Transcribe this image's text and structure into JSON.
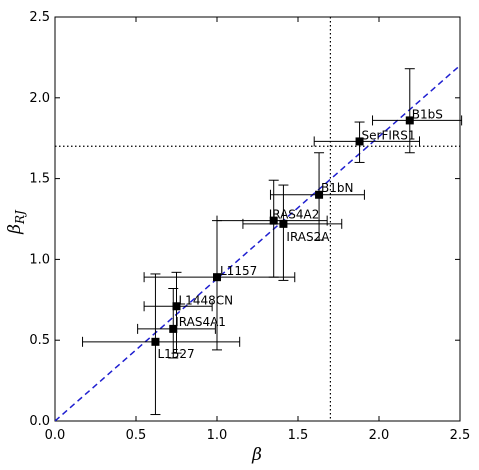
{
  "chart_data": {
    "type": "scatter",
    "title": "",
    "xlabel": "β",
    "ylabel": "β",
    "ylabel_subscript": "RJ",
    "xlim": [
      0.0,
      2.5
    ],
    "ylim": [
      0.0,
      2.5
    ],
    "xticks": [
      "0.0",
      "0.5",
      "1.0",
      "1.5",
      "2.0",
      "2.5"
    ],
    "yticks": [
      "0.0",
      "0.5",
      "1.0",
      "1.5",
      "2.0",
      "2.5"
    ],
    "grid": false,
    "points": [
      {
        "label": "L1527",
        "x": 0.62,
        "y": 0.49,
        "xerr": [
          0.45,
          0.52
        ],
        "yerr": [
          0.45,
          0.42
        ]
      },
      {
        "label": "IRAS4A1",
        "x": 0.73,
        "y": 0.57,
        "xerr": [
          0.22,
          0.26
        ],
        "yerr": [
          0.18,
          0.25
        ]
      },
      {
        "label": "L1448CN",
        "x": 0.75,
        "y": 0.71,
        "xerr": [
          0.2,
          0.22
        ],
        "yerr": [
          0.29,
          0.21
        ]
      },
      {
        "label": "L1157",
        "x": 1.0,
        "y": 0.89,
        "xerr": [
          0.45,
          0.48
        ],
        "yerr": [
          0.45,
          0.35
        ]
      },
      {
        "label": "IRAS4A2",
        "x": 1.35,
        "y": 1.24,
        "xerr": [
          0.35,
          0.33
        ],
        "yerr": [
          0.35,
          0.25
        ]
      },
      {
        "label": "IRAS2A",
        "x": 1.41,
        "y": 1.22,
        "xerr": [
          0.25,
          0.36
        ],
        "yerr": [
          0.35,
          0.24
        ]
      },
      {
        "label": "B1bN",
        "x": 1.63,
        "y": 1.4,
        "xerr": [
          0.3,
          0.28
        ],
        "yerr": [
          0.28,
          0.26
        ]
      },
      {
        "label": "SerFIRS1",
        "x": 1.88,
        "y": 1.73,
        "xerr": [
          0.28,
          0.37
        ],
        "yerr": [
          0.13,
          0.12
        ]
      },
      {
        "label": "B1bS",
        "x": 2.19,
        "y": 1.86,
        "xerr": [
          0.23,
          0.32
        ],
        "yerr": [
          0.2,
          0.32
        ]
      }
    ],
    "reference_lines": {
      "diagonal": {
        "x": [
          0.0,
          2.5
        ],
        "y": [
          0.0,
          2.2
        ],
        "style": "dashed",
        "color": "#1f1fd0"
      },
      "vertical_x": 1.7,
      "horizontal_y": 1.7
    },
    "colors": {
      "marker": "#000000",
      "diagonal": "#1f1fd0",
      "reference": "#000000"
    }
  }
}
